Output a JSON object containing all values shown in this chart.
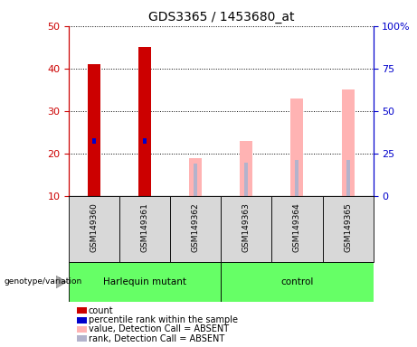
{
  "title": "GDS3365 / 1453680_at",
  "samples": [
    "GSM149360",
    "GSM149361",
    "GSM149362",
    "GSM149363",
    "GSM149364",
    "GSM149365"
  ],
  "group_labels": [
    "Harlequin mutant",
    "control"
  ],
  "count_values": [
    41.0,
    45.0,
    null,
    null,
    null,
    null
  ],
  "percentile_values": [
    23.0,
    23.0,
    null,
    null,
    null,
    null
  ],
  "absent_value": [
    null,
    null,
    19.0,
    23.0,
    33.0,
    35.0
  ],
  "absent_rank": [
    null,
    null,
    19.0,
    19.5,
    21.0,
    21.0
  ],
  "ylim_left": [
    10,
    50
  ],
  "ylim_right": [
    0,
    100
  ],
  "yticks_left": [
    10,
    20,
    30,
    40,
    50
  ],
  "yticks_right": [
    0,
    25,
    50,
    75,
    100
  ],
  "yticklabels_right": [
    "0",
    "25",
    "50",
    "75",
    "100%"
  ],
  "left_axis_color": "#cc0000",
  "right_axis_color": "#0000cc",
  "count_color": "#cc0000",
  "percentile_color": "#0000cc",
  "absent_value_color": "#ffb3b3",
  "absent_rank_color": "#b3b3cc",
  "group_color": "#66ff66",
  "bg_color": "#d8d8d8",
  "legend_items": [
    {
      "label": "count",
      "color": "#cc0000"
    },
    {
      "label": "percentile rank within the sample",
      "color": "#0000cc"
    },
    {
      "label": "value, Detection Call = ABSENT",
      "color": "#ffb3b3"
    },
    {
      "label": "rank, Detection Call = ABSENT",
      "color": "#b3b3cc"
    }
  ],
  "harlequin_span": [
    0,
    2
  ],
  "control_span": [
    3,
    5
  ]
}
